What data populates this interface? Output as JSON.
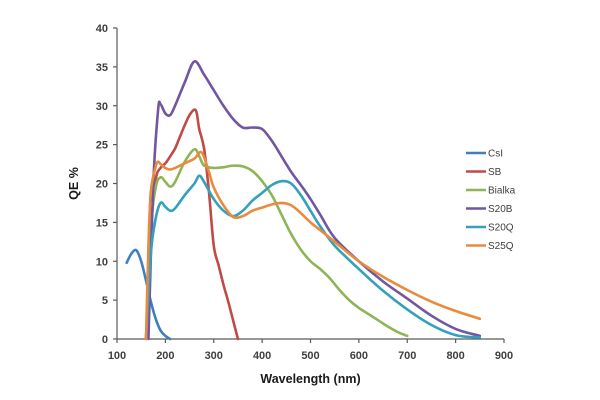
{
  "chart_data": {
    "type": "line",
    "title": "",
    "xlabel": "Wavelength (nm)",
    "ylabel": "QE %",
    "xlim": [
      100,
      900
    ],
    "ylim": [
      0,
      40
    ],
    "xticks": [
      100,
      200,
      300,
      400,
      500,
      600,
      700,
      800,
      900
    ],
    "yticks": [
      0,
      5,
      10,
      15,
      20,
      25,
      30,
      35,
      40
    ],
    "grid": false,
    "legend_position": "right",
    "series": [
      {
        "name": "CsI",
        "color": "#3f7fbf",
        "x": [
          120,
          130,
          140,
          150,
          160,
          170,
          180,
          190,
          200,
          210
        ],
        "y": [
          9.8,
          11.0,
          11.4,
          10.0,
          7.5,
          4.8,
          2.6,
          1.1,
          0.4,
          0.0
        ]
      },
      {
        "name": "SB",
        "color": "#be4b48",
        "x": [
          160,
          170,
          180,
          190,
          200,
          210,
          220,
          230,
          240,
          250,
          260,
          265,
          270,
          280,
          290,
          300,
          310,
          320,
          330,
          340,
          350
        ],
        "y": [
          0.0,
          14.0,
          20.5,
          22.0,
          22.6,
          23.5,
          24.5,
          26.0,
          27.5,
          28.8,
          29.5,
          29.0,
          27.0,
          24.5,
          19.0,
          12.0,
          9.5,
          7.0,
          4.8,
          2.4,
          0.0
        ]
      },
      {
        "name": "Bialka",
        "color": "#8db557",
        "x": [
          160,
          170,
          180,
          190,
          200,
          210,
          220,
          240,
          260,
          270,
          280,
          300,
          320,
          340,
          360,
          380,
          400,
          420,
          440,
          460,
          480,
          500,
          520,
          540,
          560,
          580,
          600,
          620,
          640,
          660,
          680,
          700
        ],
        "y": [
          0.0,
          14.0,
          19.5,
          20.8,
          20.2,
          19.6,
          20.2,
          22.8,
          24.4,
          23.5,
          22.3,
          22.0,
          22.1,
          22.3,
          22.2,
          21.6,
          20.3,
          18.5,
          16.0,
          13.5,
          11.5,
          10.0,
          9.0,
          7.8,
          6.3,
          5.0,
          4.0,
          3.2,
          2.4,
          1.6,
          0.9,
          0.4
        ]
      },
      {
        "name": "S20B",
        "color": "#7157a0",
        "x": [
          165,
          175,
          185,
          190,
          200,
          210,
          220,
          240,
          260,
          280,
          300,
          320,
          340,
          360,
          380,
          400,
          420,
          440,
          460,
          480,
          500,
          520,
          550,
          600,
          650,
          700,
          750,
          800,
          850
        ],
        "y": [
          0.0,
          20.0,
          29.5,
          30.2,
          29.0,
          28.8,
          30.0,
          33.0,
          35.7,
          34.0,
          32.0,
          30.0,
          28.3,
          27.2,
          27.2,
          27.0,
          25.5,
          23.5,
          21.5,
          19.8,
          18.0,
          16.0,
          13.0,
          10.0,
          7.4,
          5.2,
          3.0,
          1.3,
          0.4
        ]
      },
      {
        "name": "S20Q",
        "color": "#34a0bd",
        "x": [
          160,
          170,
          180,
          190,
          200,
          210,
          220,
          240,
          260,
          270,
          280,
          300,
          320,
          340,
          360,
          380,
          400,
          420,
          440,
          460,
          480,
          500,
          520,
          550,
          600,
          650,
          700,
          750,
          800,
          850
        ],
        "y": [
          0.0,
          11.0,
          15.5,
          17.5,
          17.0,
          16.5,
          16.8,
          18.5,
          20.0,
          21.0,
          20.2,
          18.0,
          16.5,
          15.8,
          16.5,
          17.8,
          18.8,
          19.8,
          20.3,
          20.0,
          18.5,
          16.5,
          14.5,
          12.0,
          9.0,
          6.2,
          3.8,
          1.8,
          0.5,
          0.2
        ]
      },
      {
        "name": "S25Q",
        "color": "#ea8a3e",
        "x": [
          160,
          165,
          170,
          180,
          185,
          190,
          200,
          210,
          220,
          240,
          260,
          275,
          290,
          300,
          320,
          340,
          360,
          380,
          400,
          420,
          440,
          460,
          480,
          500,
          520,
          550,
          600,
          650,
          700,
          750,
          800,
          850
        ],
        "y": [
          0.0,
          12.0,
          19.0,
          22.2,
          22.8,
          22.5,
          22.0,
          21.8,
          22.0,
          22.6,
          23.2,
          24.0,
          21.5,
          19.5,
          17.2,
          15.7,
          15.8,
          16.5,
          16.9,
          17.3,
          17.5,
          17.2,
          16.2,
          15.0,
          14.0,
          12.5,
          10.0,
          8.0,
          6.3,
          4.8,
          3.6,
          2.6
        ]
      }
    ]
  }
}
